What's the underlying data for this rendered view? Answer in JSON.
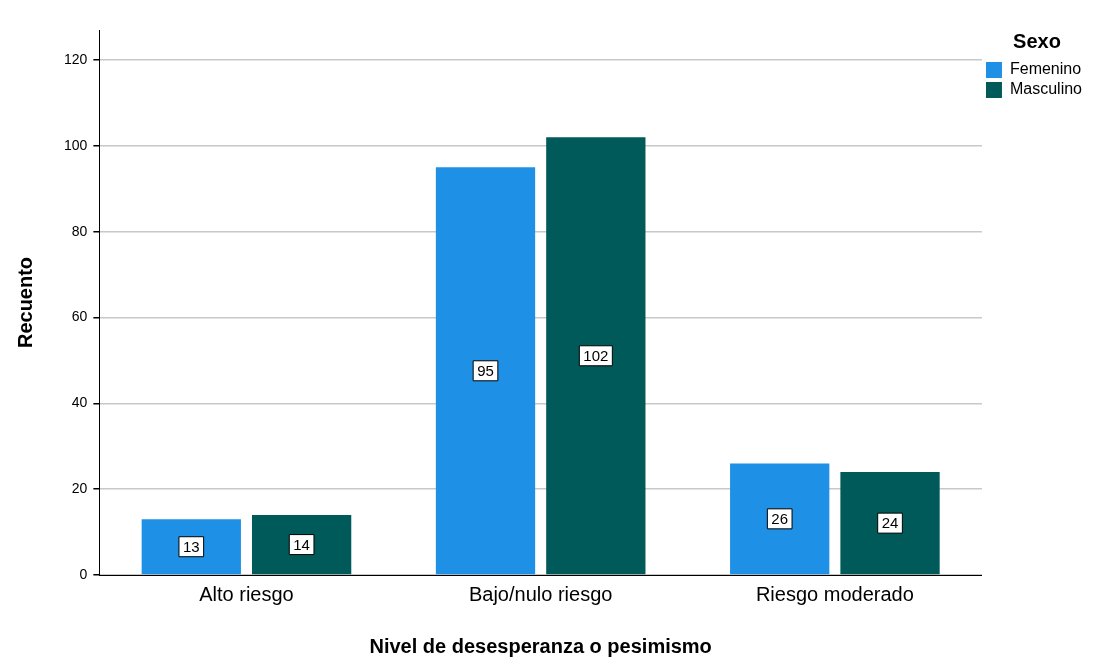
{
  "chart_data": {
    "type": "bar",
    "xlabel": "Nivel de desesperanza o pesimismo",
    "ylabel": "Recuento",
    "legend_title": "Sexo",
    "categories": [
      "Alto riesgo",
      "Bajo/nulo riesgo",
      "Riesgo moderado"
    ],
    "series": [
      {
        "name": "Femenino",
        "color": "#1e90e6",
        "values": [
          13,
          95,
          26
        ]
      },
      {
        "name": "Masculino",
        "color": "#005a5a",
        "values": [
          14,
          102,
          24
        ]
      }
    ],
    "ylim": [
      0,
      127
    ],
    "yticks": [
      0,
      20,
      40,
      60,
      80,
      100,
      120
    ],
    "grid": "y",
    "legend": "top right",
    "data_labels": true
  }
}
